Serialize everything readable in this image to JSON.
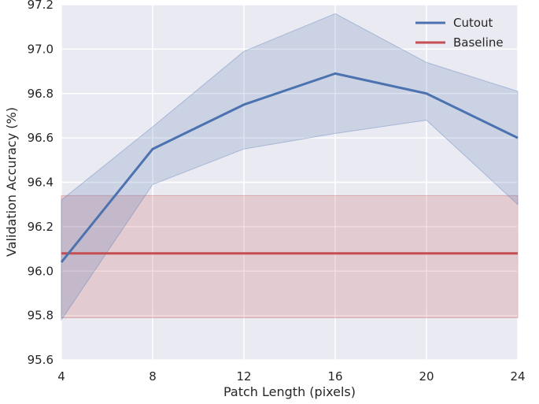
{
  "chart_data": {
    "type": "line",
    "xlabel": "Patch Length (pixels)",
    "ylabel": "Validation Accuracy (%)",
    "xlim": [
      4,
      24
    ],
    "ylim": [
      95.6,
      97.2
    ],
    "xticks": [
      "4",
      "8",
      "12",
      "16",
      "20",
      "24"
    ],
    "yticks": [
      "95.6",
      "95.8",
      "96.0",
      "96.2",
      "96.4",
      "96.6",
      "96.8",
      "97.0",
      "97.2"
    ],
    "grid": true,
    "legend_position": "top-right",
    "series": [
      {
        "name": "Cutout",
        "color": "#4c72b0",
        "x": [
          4,
          8,
          12,
          16,
          20,
          24
        ],
        "y": [
          96.04,
          96.55,
          96.75,
          96.89,
          96.8,
          96.6
        ],
        "band_upper": [
          96.32,
          96.65,
          96.99,
          97.16,
          96.94,
          96.81
        ],
        "band_lower": [
          95.78,
          96.39,
          96.55,
          96.62,
          96.68,
          96.3
        ]
      },
      {
        "name": "Baseline",
        "color": "#c44e52",
        "x": [
          4,
          24
        ],
        "y": [
          96.08,
          96.08
        ],
        "band_upper": [
          96.34,
          96.34
        ],
        "band_lower": [
          95.79,
          95.79
        ]
      }
    ]
  }
}
